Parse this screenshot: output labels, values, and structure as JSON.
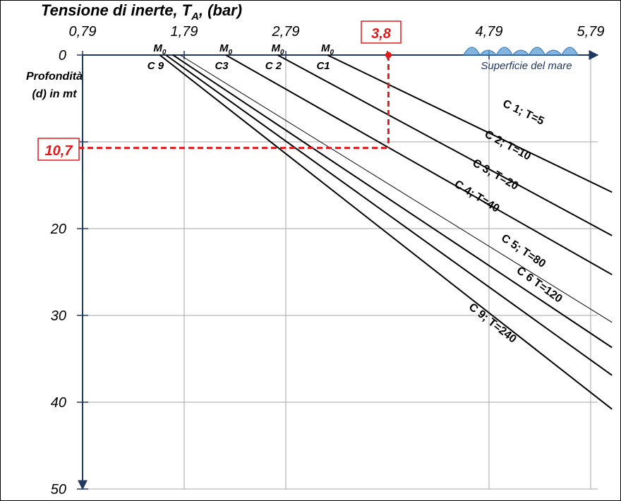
{
  "chart_data": {
    "type": "line",
    "title_main": "Tensione di inerte, T",
    "title_sub": "A",
    "title_tail": ", (bar)",
    "ylabel_lines": [
      "Profondità",
      "(d) in mt"
    ],
    "x_ticks": [
      "0,79",
      "1,79",
      "2,79",
      "3,8",
      "4,79",
      "5,79"
    ],
    "x_tick_values": [
      0.79,
      1.79,
      2.79,
      3.79,
      4.79,
      5.79
    ],
    "xlim": [
      0.79,
      6.0
    ],
    "y_ticks": [
      "0",
      "20",
      "30",
      "40",
      "50"
    ],
    "y_tick_values": [
      0,
      20,
      30,
      40,
      50
    ],
    "y_minor_ticks": [
      10
    ],
    "ylim": [
      0,
      50
    ],
    "grid": true,
    "sea_label": "Superficie del mare",
    "start_labels": [
      {
        "m": "M",
        "sub": "0",
        "c": "C 9",
        "x": 1.55
      },
      {
        "m": "M",
        "sub": "0",
        "c": "C3",
        "x": 2.2
      },
      {
        "m": "M",
        "sub": "0",
        "c": "C 2",
        "x": 2.71
      },
      {
        "m": "M",
        "sub": "0",
        "c": "C1",
        "x": 3.2
      }
    ],
    "series": [
      {
        "name": "C 1; T=5",
        "x": [
          3.2,
          6.0
        ],
        "y": [
          0,
          15.8
        ]
      },
      {
        "name": "C 2; T=10",
        "x": [
          2.71,
          6.0
        ],
        "y": [
          0,
          20.8
        ]
      },
      {
        "name": "C 3; T=20",
        "x": [
          2.2,
          6.0
        ],
        "y": [
          0,
          25.3
        ]
      },
      {
        "name": "C 4; T=40",
        "x": [
          1.75,
          6.0
        ],
        "y": [
          0,
          30.8
        ]
      },
      {
        "name": "C 5; T=80",
        "x": [
          1.68,
          6.0
        ],
        "y": [
          0,
          33.7
        ]
      },
      {
        "name": "C 6 T=120",
        "x": [
          1.61,
          6.0
        ],
        "y": [
          0,
          36.9
        ]
      },
      {
        "name": "C 9; T=240",
        "x": [
          1.55,
          6.0
        ],
        "y": [
          0,
          40.8
        ]
      }
    ],
    "highlight": {
      "x": 3.8,
      "y": 10.7,
      "x_label": "3,8",
      "y_label": "10,7",
      "color": "#e31a1c"
    },
    "colors": {
      "axis": "#1f3864",
      "grid": "#a6a6a6",
      "line": "#000000",
      "wave": "#5b9bd5"
    }
  }
}
